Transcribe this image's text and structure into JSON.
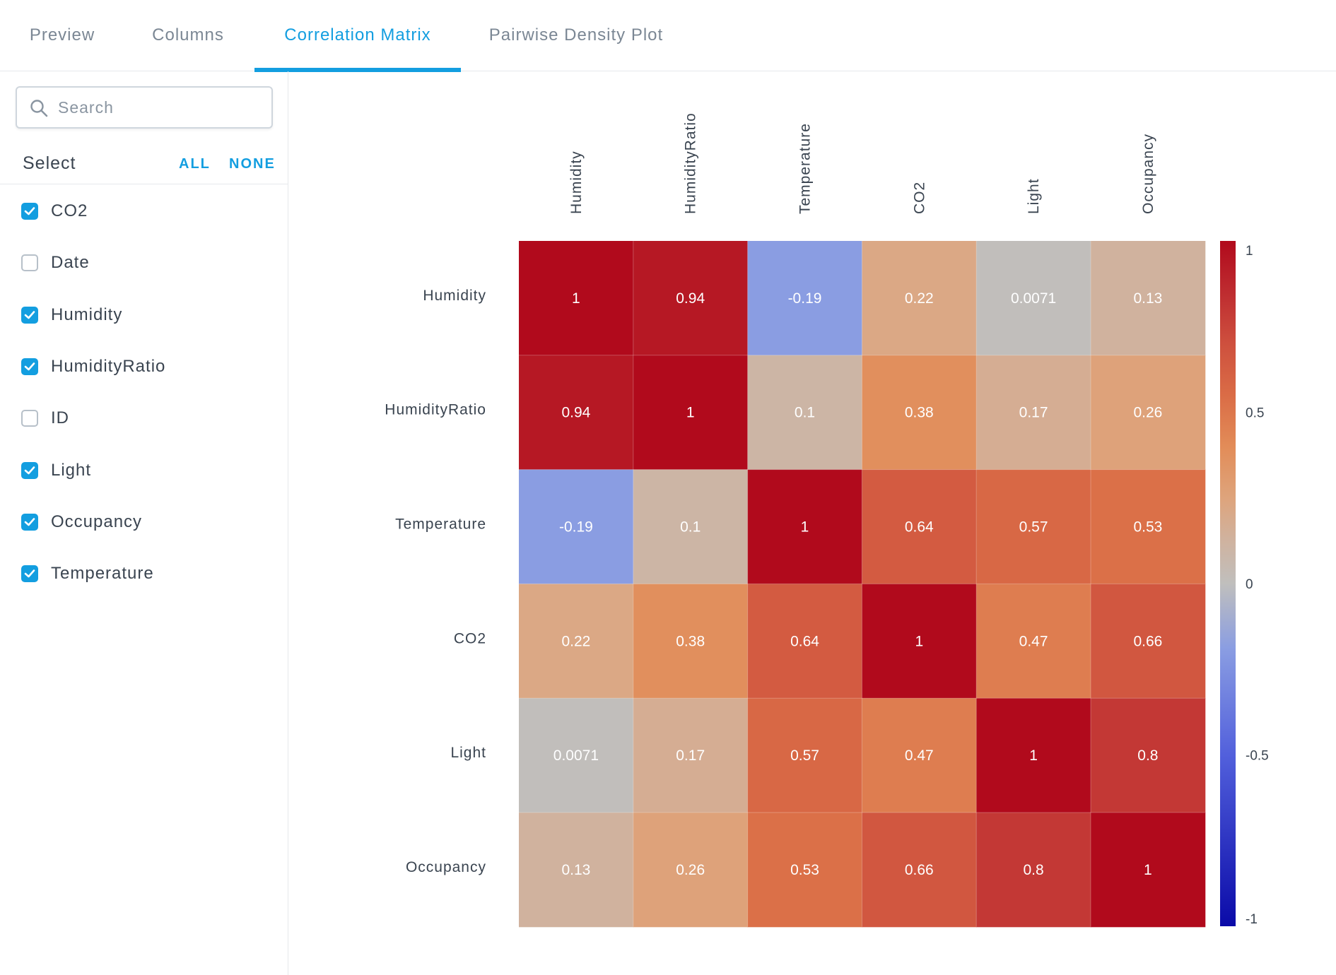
{
  "tabs": [
    {
      "label": "Preview",
      "active": false
    },
    {
      "label": "Columns",
      "active": false
    },
    {
      "label": "Correlation Matrix",
      "active": true
    },
    {
      "label": "Pairwise Density Plot",
      "active": false
    }
  ],
  "sidebar": {
    "search": {
      "placeholder": "Search",
      "value": ""
    },
    "select_label": "Select",
    "all_label": "ALL",
    "none_label": "NONE",
    "items": [
      {
        "label": "CO2",
        "checked": true
      },
      {
        "label": "Date",
        "checked": false
      },
      {
        "label": "Humidity",
        "checked": true
      },
      {
        "label": "HumidityRatio",
        "checked": true
      },
      {
        "label": "ID",
        "checked": false
      },
      {
        "label": "Light",
        "checked": true
      },
      {
        "label": "Occupancy",
        "checked": true
      },
      {
        "label": "Temperature",
        "checked": true
      }
    ]
  },
  "colors": {
    "accent": "#139ee0",
    "cmap_low": "#0a0aa8",
    "cmap_mid": "#c0bfbd",
    "cmap_high": "#b10a1c"
  },
  "chart_data": {
    "type": "heatmap",
    "x_labels": [
      "Humidity",
      "HumidityRatio",
      "Temperature",
      "CO2",
      "Light",
      "Occupancy"
    ],
    "y_labels": [
      "Humidity",
      "HumidityRatio",
      "Temperature",
      "CO2",
      "Light",
      "Occupancy"
    ],
    "values": [
      [
        1,
        0.94,
        -0.19,
        0.22,
        0.0071,
        0.13
      ],
      [
        0.94,
        1,
        0.1,
        0.38,
        0.17,
        0.26
      ],
      [
        -0.19,
        0.1,
        1,
        0.64,
        0.57,
        0.53
      ],
      [
        0.22,
        0.38,
        0.64,
        1,
        0.47,
        0.66
      ],
      [
        0.0071,
        0.17,
        0.57,
        0.47,
        1,
        0.8
      ],
      [
        0.13,
        0.26,
        0.53,
        0.66,
        0.8,
        1
      ]
    ],
    "labels": [
      [
        "1",
        "0.94",
        "-0.19",
        "0.22",
        "0.0071",
        "0.13"
      ],
      [
        "0.94",
        "1",
        "0.1",
        "0.38",
        "0.17",
        "0.26"
      ],
      [
        "-0.19",
        "0.1",
        "1",
        "0.64",
        "0.57",
        "0.53"
      ],
      [
        "0.22",
        "0.38",
        "0.64",
        "1",
        "0.47",
        "0.66"
      ],
      [
        "0.0071",
        "0.17",
        "0.57",
        "0.47",
        "1",
        "0.8"
      ],
      [
        "0.13",
        "0.26",
        "0.53",
        "0.66",
        "0.8",
        "1"
      ]
    ],
    "colorbar": {
      "range": [
        -1,
        1
      ],
      "ticks": [
        1,
        0.5,
        0,
        -0.5,
        -1
      ],
      "tick_labels": [
        "1",
        "0.5",
        "0",
        "-0.5",
        "-1"
      ]
    },
    "colormap": "coolwarm"
  }
}
